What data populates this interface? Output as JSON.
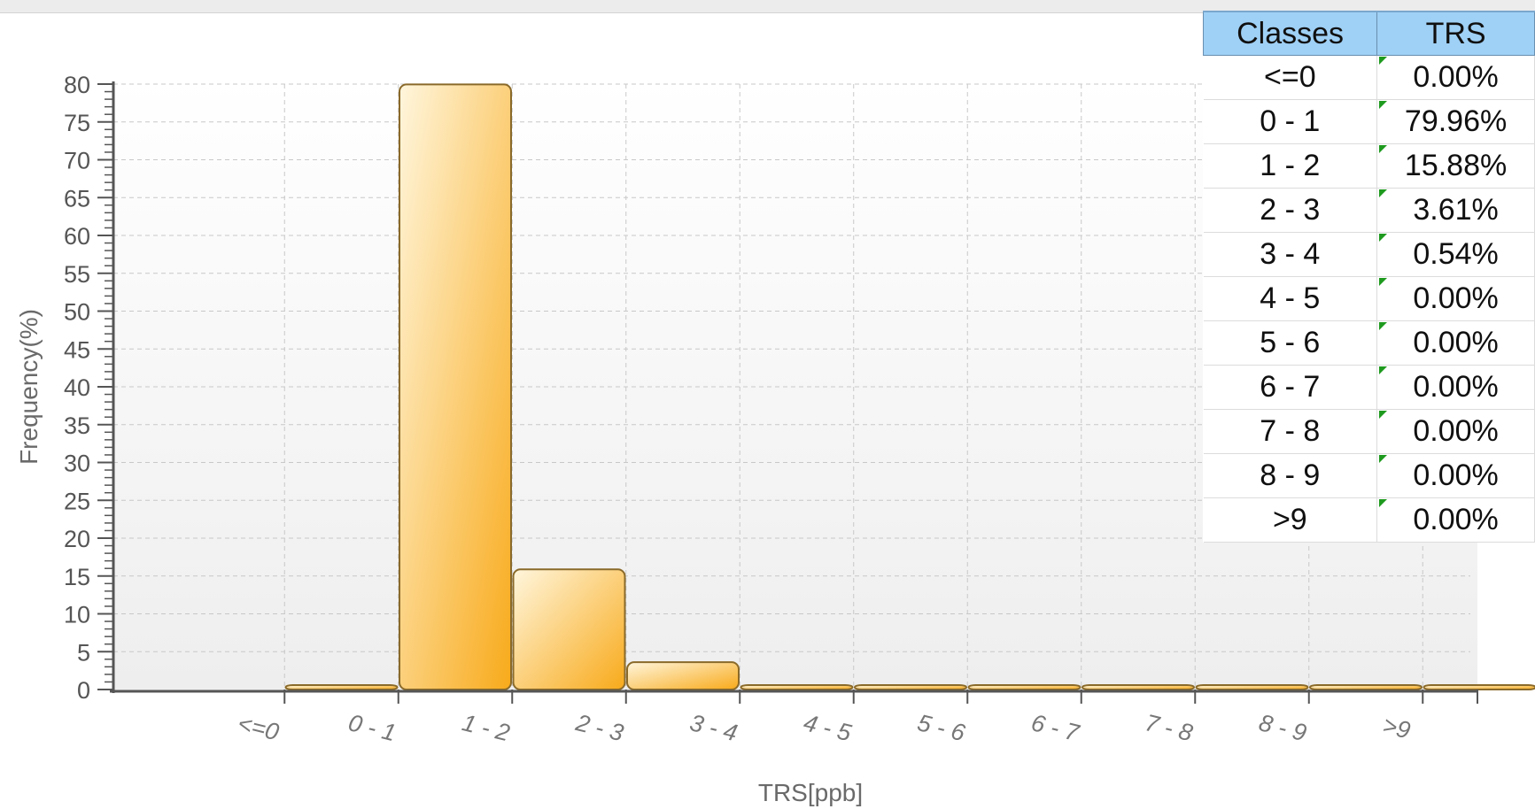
{
  "chart_data": {
    "type": "bar",
    "categories": [
      "<=0",
      "0 - 1",
      "1 - 2",
      "2 - 3",
      "3 - 4",
      "4 - 5",
      "5 - 6",
      "6 - 7",
      "7 - 8",
      "8 - 9",
      ">9"
    ],
    "values": [
      0.0,
      79.96,
      15.88,
      3.61,
      0.54,
      0.0,
      0.0,
      0.0,
      0.0,
      0.0,
      0.0
    ],
    "xlabel": "TRS[ppb]",
    "ylabel": "Frequency(%)",
    "ylim": [
      0,
      80
    ],
    "yticks": [
      0,
      5,
      10,
      15,
      20,
      25,
      30,
      35,
      40,
      45,
      50,
      55,
      60,
      65,
      70,
      75,
      80
    ],
    "grid": true,
    "bar_color": "#f8aa1a",
    "bar_highlight": "#fff6dd"
  },
  "table": {
    "headers": [
      "Classes",
      "TRS"
    ],
    "rows": [
      {
        "cls": "<=0",
        "val": "0.00%"
      },
      {
        "cls": "0 - 1",
        "val": "79.96%"
      },
      {
        "cls": "1 - 2",
        "val": "15.88%"
      },
      {
        "cls": "2 - 3",
        "val": "3.61%"
      },
      {
        "cls": "3 - 4",
        "val": "0.54%"
      },
      {
        "cls": "4 - 5",
        "val": "0.00%"
      },
      {
        "cls": "5 - 6",
        "val": "0.00%"
      },
      {
        "cls": "6 - 7",
        "val": "0.00%"
      },
      {
        "cls": "7 - 8",
        "val": "0.00%"
      },
      {
        "cls": "8 - 9",
        "val": "0.00%"
      },
      {
        "cls": ">9",
        "val": "0.00%"
      }
    ],
    "header_color": "#9fd0f5",
    "flag_color": "#1e9a1e"
  }
}
